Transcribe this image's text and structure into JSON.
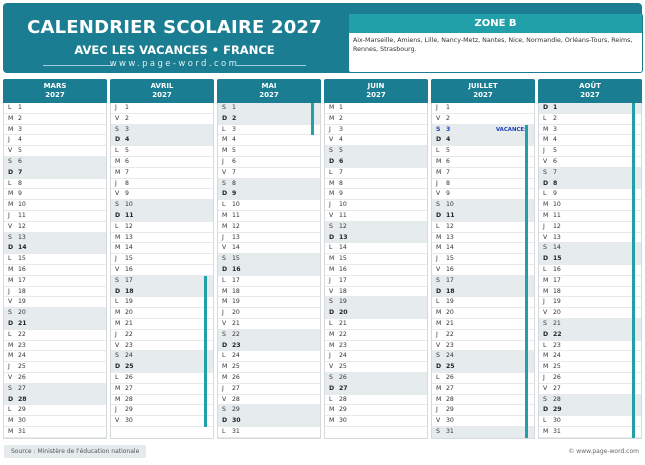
{
  "header": {
    "title": "CALENDRIER SCOLAIRE 2027",
    "subtitle": "AVEC LES VACANCES • FRANCE",
    "url": "www.page-word.com"
  },
  "zone": {
    "title": "ZONE B",
    "text": "Aix-Marseille, Amiens, Lille, Nancy-Metz, Nantes, Nice, Normandie, Orléans-Tours, Reims, Rennes, Strasbourg."
  },
  "months": [
    {
      "name": "MARS",
      "year": "2027",
      "first": 1,
      "days": 31,
      "bars": []
    },
    {
      "name": "AVRIL",
      "year": "2027",
      "first": 4,
      "days": 30,
      "bars": [
        [
          17,
          30
        ]
      ]
    },
    {
      "name": "MAI",
      "year": "2027",
      "first": 6,
      "days": 31,
      "bars": [
        [
          1,
          3
        ]
      ]
    },
    {
      "name": "JUIN",
      "year": "2027",
      "first": 2,
      "days": 30,
      "bars": []
    },
    {
      "name": "JUILLET",
      "year": "2027",
      "first": 4,
      "days": 31,
      "bars": [
        [
          3,
          31
        ]
      ],
      "note": {
        "day": 3,
        "text": "VACANCES"
      }
    },
    {
      "name": "AOÛT",
      "year": "2027",
      "first": 0,
      "days": 31,
      "bars": [
        [
          1,
          31
        ]
      ]
    }
  ],
  "weekday_letters": [
    "D",
    "L",
    "M",
    "M",
    "J",
    "V",
    "S"
  ],
  "footer": {
    "source": "Source : Ministère de l'éducation nationale",
    "copyright": "© www.page-word.com"
  },
  "colors": {
    "header": "#1a7d91",
    "accent": "#22a0aa",
    "weekend": "#e6ebee",
    "highlight": "#1e3fb8"
  }
}
